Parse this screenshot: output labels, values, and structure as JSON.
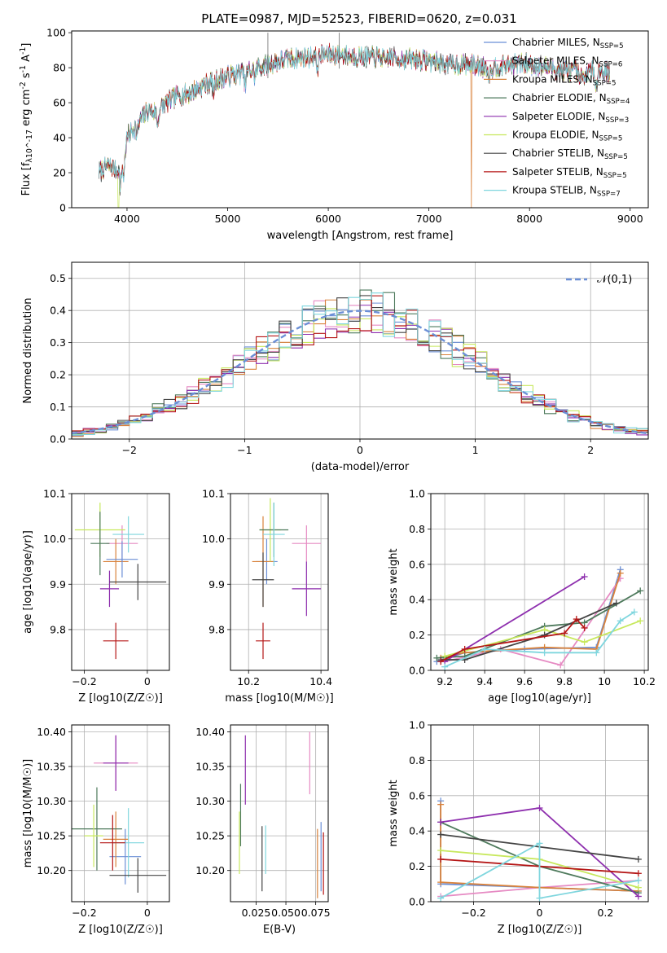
{
  "figure_title": "PLATE=0987, MJD=52523, FIBERID=0620, z=0.031",
  "colors": {
    "chabrier_miles": "#6b8fd6",
    "salpeter_miles": "#e68ac3",
    "kroupa_miles": "#d9823b",
    "chabrier_elodie": "#4e7a5c",
    "salpeter_elodie": "#8e2fae",
    "kroupa_elodie": "#c7e85c",
    "chabrier_stelib": "#444444",
    "salpeter_stelib": "#b51616",
    "kroupa_stelib": "#7fd6de"
  },
  "chart_data": [
    {
      "id": "spectrum",
      "type": "line",
      "xlabel": "wavelength [Angstrom, rest frame]",
      "ylabel": "Flux [f_λ10^-17 erg cm^-2 s^-1 A^-1]",
      "xlim": [
        3450,
        9180
      ],
      "ylim": [
        0,
        101
      ],
      "xticks": [
        4000,
        5000,
        6000,
        7000,
        8000,
        9000
      ],
      "yticks": [
        0,
        20,
        40,
        60,
        80,
        100
      ],
      "grid": false,
      "legend_position": "upper-right",
      "legend": [
        {
          "label": "Chabrier MILES, N_SSP=5",
          "color_key": "chabrier_miles"
        },
        {
          "label": "Salpeter MILES, N_SSP=6",
          "color_key": "salpeter_miles"
        },
        {
          "label": "Kroupa MILES, N_SSP=5",
          "color_key": "kroupa_miles"
        },
        {
          "label": "Chabrier ELODIE, N_SSP=4",
          "color_key": "chabrier_elodie"
        },
        {
          "label": "Salpeter ELODIE, N_SSP=3",
          "color_key": "salpeter_elodie"
        },
        {
          "label": "Kroupa ELODIE, N_SSP=5",
          "color_key": "kroupa_elodie"
        },
        {
          "label": "Chabrier STELIB, N_SSP=5",
          "color_key": "chabrier_stelib"
        },
        {
          "label": "Salpeter STELIB, N_SSP=5",
          "color_key": "salpeter_stelib"
        },
        {
          "label": "Kroupa STELIB, N_SSP=7",
          "color_key": "kroupa_stelib"
        }
      ],
      "continuum": {
        "x": [
          3720,
          3800,
          3900,
          3950,
          4000,
          4100,
          4200,
          4300,
          4400,
          4500,
          4600,
          4700,
          4800,
          4900,
          5000,
          5200,
          5400,
          5600,
          5800,
          6000,
          6200,
          6400,
          6600,
          6800,
          7000,
          7200,
          7400,
          7600,
          7800,
          8000,
          8200,
          8400,
          8600,
          8800
        ],
        "y": [
          20,
          24,
          22,
          25,
          40,
          48,
          55,
          55,
          60,
          64,
          65,
          68,
          71,
          73,
          75,
          78,
          82,
          85,
          86,
          88,
          87,
          86,
          86,
          85,
          84,
          82,
          82,
          80,
          82,
          82,
          80,
          78,
          78,
          78
        ]
      },
      "lines": [
        {
          "wavelength": 3934,
          "depth": 12
        },
        {
          "wavelength": 3969,
          "depth": 12
        },
        {
          "wavelength": 4101,
          "depth": 6
        },
        {
          "wavelength": 4304,
          "depth": 8
        },
        {
          "wavelength": 4861,
          "depth": 6
        },
        {
          "wavelength": 5175,
          "depth": 8
        },
        {
          "wavelength": 5270,
          "depth": 4
        },
        {
          "wavelength": 5893,
          "depth": 7
        },
        {
          "wavelength": 6563,
          "depth": 5
        },
        {
          "wavelength": 7600,
          "depth": 6
        },
        {
          "wavelength": 8498,
          "depth": 8
        },
        {
          "wavelength": 8542,
          "depth": 9
        },
        {
          "wavelength": 8662,
          "depth": 8
        }
      ],
      "drops": [
        {
          "wavelength": 3915,
          "color_key": "kroupa_elodie"
        },
        {
          "wavelength": 6800,
          "color_key": "kroupa_elodie"
        },
        {
          "wavelength": 7420,
          "color_key": "kroupa_miles"
        }
      ]
    },
    {
      "id": "residuals",
      "type": "histogram",
      "xlabel": "(data-model)/error",
      "ylabel": "Normed distribution",
      "xlim": [
        -2.5,
        2.5
      ],
      "ylim": [
        0,
        0.55
      ],
      "xticks": [
        -2,
        -1,
        0,
        1,
        2
      ],
      "yticks": [
        0.0,
        0.1,
        0.2,
        0.3,
        0.4,
        0.5
      ],
      "grid": true,
      "legend_position": "upper-right",
      "reference": {
        "label": "𝒩(0,1)",
        "mean": 0,
        "sigma": 1,
        "color": "#6b8fd6"
      },
      "bin_width": 0.1,
      "deviation_seeds": [
        11,
        23,
        37,
        41,
        53,
        67,
        79,
        83,
        97
      ]
    },
    {
      "id": "age-vs-z",
      "type": "errorbar",
      "xlabel": "Z [log10(Z/Z☉)]",
      "ylabel": "age [log10(age/yr)]",
      "xlim": [
        -0.24,
        0.07
      ],
      "ylim": [
        9.71,
        10.1
      ],
      "xticks": [
        -0.2,
        0.0
      ],
      "yticks": [
        9.8,
        9.9,
        10.0,
        10.1
      ],
      "grid": true,
      "points": [
        {
          "x": -0.08,
          "y": 9.99,
          "xerr": 0.05,
          "yerr": 0.04,
          "color_key": "salpeter_miles"
        },
        {
          "x": -0.1,
          "y": 9.95,
          "xerr": 0.04,
          "yerr": 0.05,
          "color_key": "kroupa_miles"
        },
        {
          "x": -0.08,
          "y": 9.955,
          "xerr": 0.05,
          "yerr": 0.04,
          "color_key": "chabrier_miles"
        },
        {
          "x": -0.15,
          "y": 10.02,
          "xerr": 0.08,
          "yerr": 0.06,
          "color_key": "kroupa_elodie"
        },
        {
          "x": -0.15,
          "y": 9.99,
          "xerr": 0.03,
          "yerr": 0.07,
          "color_key": "chabrier_elodie"
        },
        {
          "x": -0.12,
          "y": 9.89,
          "xerr": 0.03,
          "yerr": 0.04,
          "color_key": "salpeter_elodie"
        },
        {
          "x": -0.06,
          "y": 10.01,
          "xerr": 0.05,
          "yerr": 0.04,
          "color_key": "kroupa_stelib"
        },
        {
          "x": -0.03,
          "y": 9.905,
          "xerr": 0.09,
          "yerr": 0.04,
          "color_key": "chabrier_stelib"
        },
        {
          "x": -0.1,
          "y": 9.775,
          "xerr": 0.04,
          "yerr": 0.04,
          "color_key": "salpeter_stelib"
        }
      ]
    },
    {
      "id": "age-vs-mass",
      "type": "errorbar",
      "xlabel": "mass [log10(M/M☉)]",
      "ylabel": "",
      "xlim": [
        10.15,
        10.42
      ],
      "ylim": [
        9.71,
        10.1
      ],
      "xticks": [
        10.2,
        10.4
      ],
      "yticks": [
        9.8,
        9.9,
        10.0,
        10.1
      ],
      "grid": true,
      "points": [
        {
          "x": 10.36,
          "y": 9.99,
          "xerr": 0.04,
          "yerr": 0.04,
          "color_key": "salpeter_miles"
        },
        {
          "x": 10.25,
          "y": 9.95,
          "xerr": 0.03,
          "yerr": 0.05,
          "color_key": "chabrier_miles"
        },
        {
          "x": 10.24,
          "y": 9.95,
          "xerr": 0.03,
          "yerr": 0.1,
          "color_key": "kroupa_miles"
        },
        {
          "x": 10.26,
          "y": 10.02,
          "xerr": 0.03,
          "yerr": 0.07,
          "color_key": "kroupa_elodie"
        },
        {
          "x": 10.27,
          "y": 10.02,
          "xerr": 0.04,
          "yerr": 0.06,
          "color_key": "chabrier_elodie"
        },
        {
          "x": 10.36,
          "y": 9.89,
          "xerr": 0.04,
          "yerr": 0.06,
          "color_key": "salpeter_elodie"
        },
        {
          "x": 10.27,
          "y": 10.01,
          "xerr": 0.03,
          "yerr": 0.07,
          "color_key": "kroupa_stelib"
        },
        {
          "x": 10.24,
          "y": 9.91,
          "xerr": 0.03,
          "yerr": 0.06,
          "color_key": "chabrier_stelib"
        },
        {
          "x": 10.24,
          "y": 9.775,
          "xerr": 0.02,
          "yerr": 0.04,
          "color_key": "salpeter_stelib"
        }
      ]
    },
    {
      "id": "weight-vs-age",
      "type": "line",
      "xlabel": "age [log10(age/yr)]",
      "ylabel": "mass weight",
      "xlim": [
        9.13,
        10.22
      ],
      "ylim": [
        0,
        1
      ],
      "xticks": [
        9.2,
        9.4,
        9.6,
        9.8,
        10.0,
        10.2
      ],
      "yticks": [
        0.0,
        0.2,
        0.4,
        0.6,
        0.8,
        1.0
      ],
      "grid": true,
      "series": [
        {
          "color_key": "chabrier_miles",
          "x": [
            9.16,
            9.3,
            9.6,
            9.96,
            10.08
          ],
          "y": [
            0.05,
            0.1,
            0.12,
            0.13,
            0.57
          ]
        },
        {
          "color_key": "salpeter_miles",
          "x": [
            9.2,
            9.48,
            9.78,
            10.08
          ],
          "y": [
            0.05,
            0.12,
            0.03,
            0.52
          ]
        },
        {
          "color_key": "kroupa_miles",
          "x": [
            9.18,
            9.3,
            9.7,
            9.96,
            10.08
          ],
          "y": [
            0.07,
            0.1,
            0.13,
            0.12,
            0.55
          ]
        },
        {
          "color_key": "chabrier_elodie",
          "x": [
            9.16,
            9.3,
            9.7,
            9.9,
            10.18
          ],
          "y": [
            0.07,
            0.08,
            0.25,
            0.27,
            0.45
          ]
        },
        {
          "color_key": "salpeter_elodie",
          "x": [
            9.2,
            9.9
          ],
          "y": [
            0.05,
            0.53
          ]
        },
        {
          "color_key": "kroupa_elodie",
          "x": [
            9.2,
            9.7,
            9.9,
            10.18
          ],
          "y": [
            0.08,
            0.23,
            0.16,
            0.28
          ]
        },
        {
          "color_key": "chabrier_stelib",
          "x": [
            9.18,
            9.3,
            9.7,
            10.06
          ],
          "y": [
            0.06,
            0.06,
            0.2,
            0.38
          ]
        },
        {
          "color_key": "salpeter_stelib",
          "x": [
            9.18,
            9.3,
            9.8,
            9.86,
            9.9
          ],
          "y": [
            0.05,
            0.12,
            0.21,
            0.29,
            0.24
          ]
        },
        {
          "color_key": "kroupa_stelib",
          "x": [
            9.2,
            9.4,
            9.7,
            9.96,
            10.08,
            10.15
          ],
          "y": [
            0.02,
            0.12,
            0.1,
            0.1,
            0.28,
            0.33
          ]
        }
      ]
    },
    {
      "id": "mass-vs-z",
      "type": "errorbar",
      "xlabel": "Z [log10(Z/Z☉)]",
      "ylabel": "mass [log10(M/M☉)]",
      "xlim": [
        -0.24,
        0.07
      ],
      "ylim": [
        10.155,
        10.41
      ],
      "xticks": [
        -0.2,
        0.0
      ],
      "yticks": [
        10.2,
        10.25,
        10.3,
        10.35,
        10.4
      ],
      "grid": true,
      "points": [
        {
          "x": -0.1,
          "y": 10.355,
          "xerr": 0.07,
          "yerr": 0.04,
          "color_key": "salpeter_miles"
        },
        {
          "x": -0.1,
          "y": 10.355,
          "xerr": 0.04,
          "yerr": 0.04,
          "color_key": "salpeter_elodie"
        },
        {
          "x": -0.07,
          "y": 10.22,
          "xerr": 0.05,
          "yerr": 0.04,
          "color_key": "chabrier_miles"
        },
        {
          "x": -0.1,
          "y": 10.245,
          "xerr": 0.04,
          "yerr": 0.04,
          "color_key": "kroupa_miles"
        },
        {
          "x": -0.16,
          "y": 10.26,
          "xerr": 0.08,
          "yerr": 0.06,
          "color_key": "chabrier_elodie"
        },
        {
          "x": -0.17,
          "y": 10.25,
          "xerr": 0.03,
          "yerr": 0.045,
          "color_key": "kroupa_elodie"
        },
        {
          "x": -0.06,
          "y": 10.24,
          "xerr": 0.05,
          "yerr": 0.05,
          "color_key": "kroupa_stelib"
        },
        {
          "x": -0.03,
          "y": 10.193,
          "xerr": 0.09,
          "yerr": 0.025,
          "color_key": "chabrier_stelib"
        },
        {
          "x": -0.11,
          "y": 10.24,
          "xerr": 0.04,
          "yerr": 0.04,
          "color_key": "salpeter_stelib"
        }
      ]
    },
    {
      "id": "mass-vs-ebv",
      "type": "errorbar",
      "xlabel": "E(B-V)",
      "ylabel": "",
      "xlim": [
        0.0035,
        0.0855
      ],
      "ylim": [
        10.155,
        10.41
      ],
      "xticks": [
        0.025,
        0.05,
        0.075
      ],
      "xtick_labels": [
        "0.025",
        "0.050",
        "0.075"
      ],
      "yticks": [
        10.2,
        10.25,
        10.3,
        10.35,
        10.4
      ],
      "grid": true,
      "points": [
        {
          "x": 0.07,
          "y": 10.355,
          "xerr": 0,
          "yerr": 0.045,
          "color_key": "salpeter_miles"
        },
        {
          "x": 0.016,
          "y": 10.345,
          "xerr": 0,
          "yerr": 0.05,
          "color_key": "salpeter_elodie"
        },
        {
          "x": 0.0795,
          "y": 10.22,
          "xerr": 0,
          "yerr": 0.05,
          "color_key": "chabrier_miles"
        },
        {
          "x": 0.0765,
          "y": 10.21,
          "xerr": 0,
          "yerr": 0.05,
          "color_key": "kroupa_miles"
        },
        {
          "x": 0.012,
          "y": 10.28,
          "xerr": 0,
          "yerr": 0.045,
          "color_key": "chabrier_elodie"
        },
        {
          "x": 0.011,
          "y": 10.24,
          "xerr": 0,
          "yerr": 0.045,
          "color_key": "kroupa_elodie"
        },
        {
          "x": 0.033,
          "y": 10.23,
          "xerr": 0,
          "yerr": 0.035,
          "color_key": "kroupa_stelib"
        },
        {
          "x": 0.03,
          "y": 10.217,
          "xerr": 0,
          "yerr": 0.047,
          "color_key": "chabrier_stelib"
        },
        {
          "x": 0.0815,
          "y": 10.21,
          "xerr": 0,
          "yerr": 0.045,
          "color_key": "salpeter_stelib"
        }
      ]
    },
    {
      "id": "weight-vs-z",
      "type": "line",
      "xlabel": "Z [log10(Z/Z☉)]",
      "ylabel": "mass weight",
      "xlim": [
        -0.33,
        0.33
      ],
      "ylim": [
        0,
        1
      ],
      "xticks": [
        -0.2,
        0.0,
        0.2
      ],
      "yticks": [
        0.0,
        0.2,
        0.4,
        0.6,
        0.8,
        1.0
      ],
      "grid": true,
      "series": [
        {
          "color_key": "chabrier_miles",
          "x": [
            -0.3,
            -0.3,
            0.0,
            0.3
          ],
          "y": [
            0.57,
            0.1,
            0.08,
            0.06
          ]
        },
        {
          "color_key": "salpeter_miles",
          "x": [
            -0.3,
            0.0,
            0.3
          ],
          "y": [
            0.03,
            0.08,
            0.12
          ]
        },
        {
          "color_key": "kroupa_miles",
          "x": [
            -0.3,
            -0.3,
            0.0,
            0.3
          ],
          "y": [
            0.55,
            0.11,
            0.08,
            0.06
          ]
        },
        {
          "color_key": "chabrier_elodie",
          "x": [
            -0.3,
            0.0,
            0.3
          ],
          "y": [
            0.45,
            0.2,
            0.05
          ]
        },
        {
          "color_key": "salpeter_elodie",
          "x": [
            -0.3,
            0.0,
            0.3
          ],
          "y": [
            0.45,
            0.53,
            0.03
          ]
        },
        {
          "color_key": "kroupa_elodie",
          "x": [
            -0.3,
            0.0,
            0.3
          ],
          "y": [
            0.29,
            0.24,
            0.08
          ]
        },
        {
          "color_key": "chabrier_stelib",
          "x": [
            -0.3,
            0.3
          ],
          "y": [
            0.38,
            0.24
          ]
        },
        {
          "color_key": "salpeter_stelib",
          "x": [
            -0.3,
            0.3
          ],
          "y": [
            0.24,
            0.16
          ]
        },
        {
          "color_key": "kroupa_stelib",
          "x": [
            -0.3,
            0.0,
            0.0,
            0.3
          ],
          "y": [
            0.02,
            0.33,
            0.02,
            0.12
          ]
        }
      ]
    }
  ]
}
